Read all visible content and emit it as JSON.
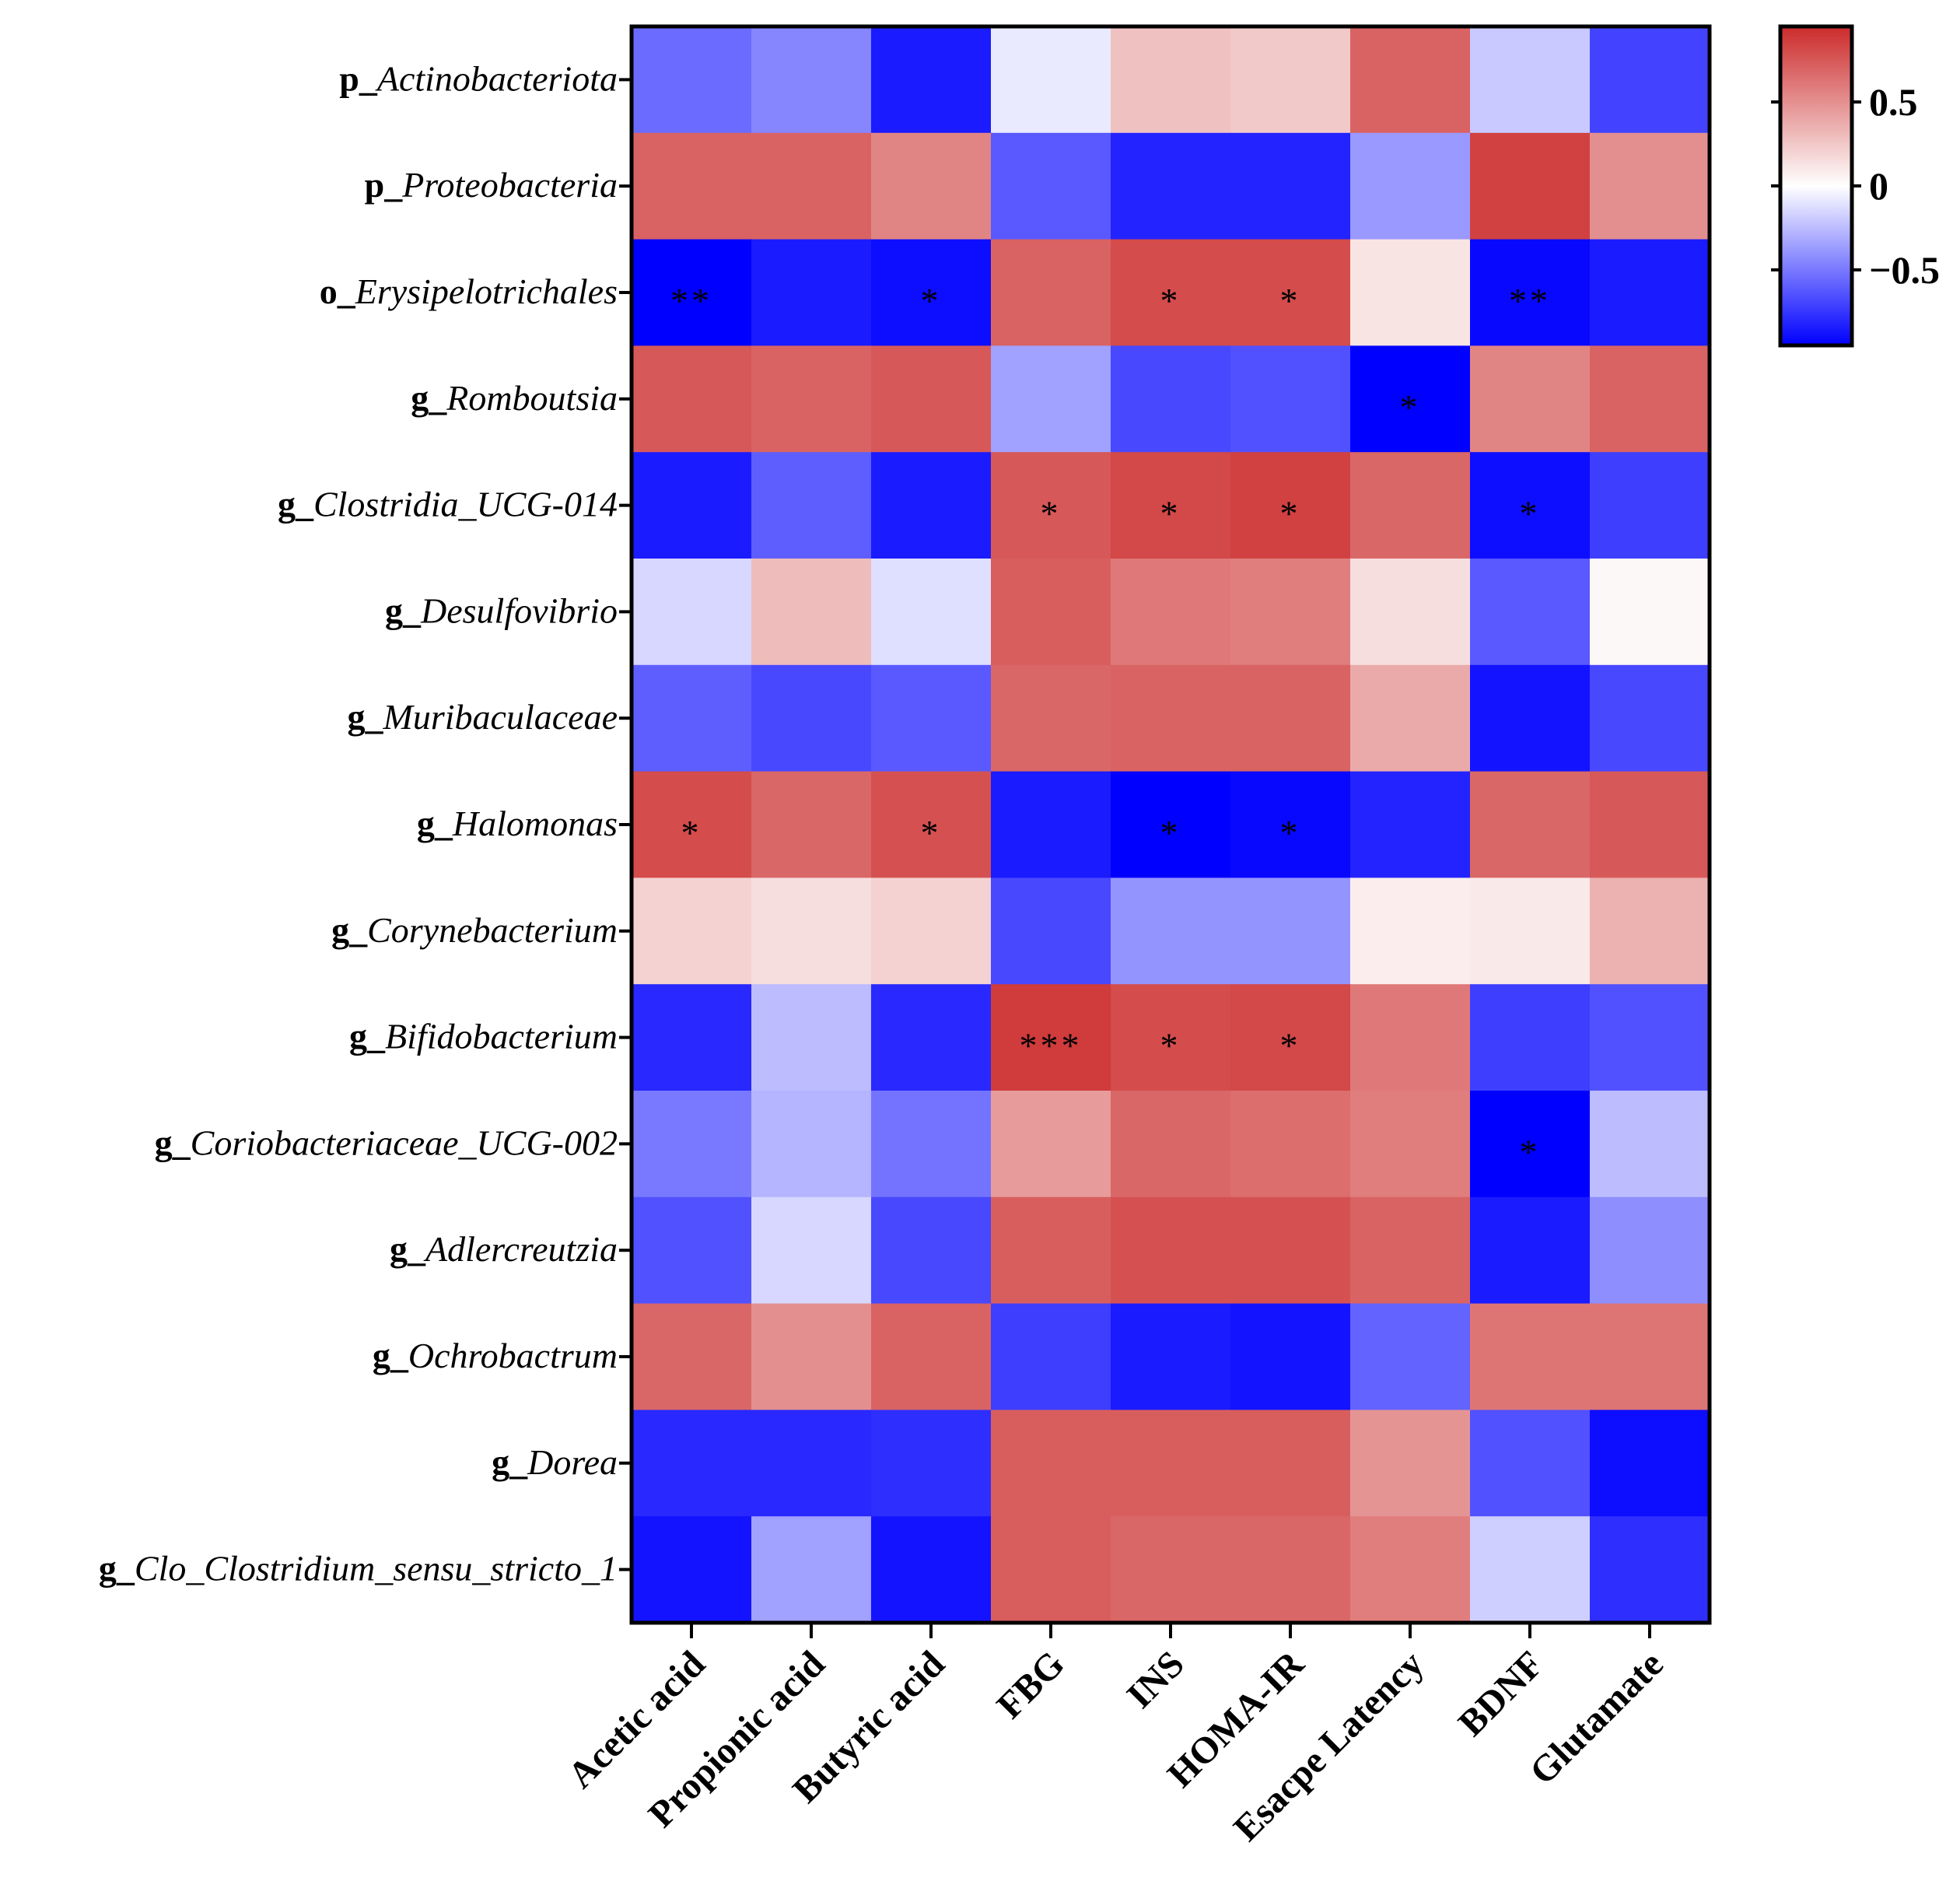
{
  "chart_data": {
    "type": "heatmap",
    "title": "",
    "xlabel": "",
    "ylabel": "",
    "columns": [
      "Acetic acid",
      "Propionic acid",
      "Butyric acid",
      "FBG",
      "INS",
      "HOMA-IR",
      "Esacpe Latency",
      "BDNF",
      "Glutamate"
    ],
    "rows": [
      {
        "prefix": "p_",
        "taxon": "Actinobacteriota"
      },
      {
        "prefix": "p_",
        "taxon": "Proteobacteria"
      },
      {
        "prefix": "o_",
        "taxon": "Erysipelotrichales"
      },
      {
        "prefix": "g_",
        "taxon": "Romboutsia"
      },
      {
        "prefix": "g_",
        "taxon": "Clostridia_UCG-014"
      },
      {
        "prefix": "g_",
        "taxon": "Desulfovibrio"
      },
      {
        "prefix": "g_",
        "taxon": "Muribaculaceae"
      },
      {
        "prefix": "g_",
        "taxon": "Halomonas"
      },
      {
        "prefix": "g_",
        "taxon": "Corynebacterium"
      },
      {
        "prefix": "g_",
        "taxon": "Bifidobacterium"
      },
      {
        "prefix": "g_",
        "taxon": "Coriobacteriaceae_UCG-002"
      },
      {
        "prefix": "g_",
        "taxon": "Adlercreutzia"
      },
      {
        "prefix": "g_",
        "taxon": "Ochrobactrum"
      },
      {
        "prefix": "g_",
        "taxon": "Dorea"
      },
      {
        "prefix": "g_",
        "taxon": "Clo_Clostridium_sensu_stricto_1"
      }
    ],
    "values": [
      [
        -0.55,
        -0.45,
        -0.85,
        -0.08,
        0.28,
        0.24,
        0.7,
        -0.2,
        -0.7
      ],
      [
        0.7,
        0.7,
        0.55,
        -0.62,
        -0.82,
        -0.82,
        -0.38,
        0.85,
        0.5
      ],
      [
        -0.95,
        -0.85,
        -0.9,
        0.7,
        0.8,
        0.8,
        0.12,
        -0.92,
        -0.85
      ],
      [
        0.75,
        0.7,
        0.75,
        -0.35,
        -0.68,
        -0.65,
        -0.97,
        0.55,
        0.7
      ],
      [
        -0.85,
        -0.6,
        -0.85,
        0.75,
        0.82,
        0.85,
        0.68,
        -0.9,
        -0.72
      ],
      [
        -0.15,
        0.3,
        -0.12,
        0.72,
        0.6,
        0.58,
        0.15,
        -0.62,
        0.03
      ],
      [
        -0.6,
        -0.68,
        -0.62,
        0.68,
        0.7,
        0.7,
        0.38,
        -0.88,
        -0.68
      ],
      [
        0.8,
        0.68,
        0.78,
        -0.85,
        -0.95,
        -0.92,
        -0.82,
        0.68,
        0.75
      ],
      [
        0.2,
        0.15,
        0.2,
        -0.68,
        -0.4,
        -0.4,
        0.08,
        0.1,
        0.35
      ],
      [
        -0.8,
        -0.25,
        -0.8,
        0.88,
        0.8,
        0.82,
        0.6,
        -0.72,
        -0.65
      ],
      [
        -0.5,
        -0.28,
        -0.52,
        0.45,
        0.68,
        0.65,
        0.58,
        -0.95,
        -0.25
      ],
      [
        -0.65,
        -0.15,
        -0.68,
        0.72,
        0.78,
        0.78,
        0.7,
        -0.85,
        -0.42
      ],
      [
        0.68,
        0.5,
        0.7,
        -0.72,
        -0.85,
        -0.88,
        -0.58,
        0.62,
        0.62
      ],
      [
        -0.8,
        -0.8,
        -0.78,
        0.72,
        0.72,
        0.72,
        0.48,
        -0.65,
        -0.9
      ],
      [
        -0.88,
        -0.35,
        -0.88,
        0.72,
        0.68,
        0.68,
        0.58,
        -0.18,
        -0.78
      ]
    ],
    "significance": [
      [
        "",
        "",
        "",
        "",
        "",
        "",
        "",
        "",
        ""
      ],
      [
        "",
        "",
        "",
        "",
        "",
        "",
        "",
        "",
        ""
      ],
      [
        "**",
        "",
        "*",
        "",
        "*",
        "*",
        "",
        "**",
        ""
      ],
      [
        "",
        "",
        "",
        "",
        "",
        "",
        "*",
        "",
        ""
      ],
      [
        "",
        "",
        "",
        "*",
        "*",
        "*",
        "",
        "*",
        ""
      ],
      [
        "",
        "",
        "",
        "",
        "",
        "",
        "",
        "",
        ""
      ],
      [
        "",
        "",
        "",
        "",
        "",
        "",
        "",
        "",
        ""
      ],
      [
        "*",
        "",
        "*",
        "",
        "*",
        "*",
        "",
        "",
        ""
      ],
      [
        "",
        "",
        "",
        "",
        "",
        "",
        "",
        "",
        ""
      ],
      [
        "",
        "",
        "",
        "***",
        "*",
        "*",
        "",
        "",
        ""
      ],
      [
        "",
        "",
        "",
        "",
        "",
        "",
        "",
        "*",
        ""
      ],
      [
        "",
        "",
        "",
        "",
        "",
        "",
        "",
        "",
        ""
      ],
      [
        "",
        "",
        "",
        "",
        "",
        "",
        "",
        "",
        ""
      ],
      [
        "",
        "",
        "",
        "",
        "",
        "",
        "",
        "",
        ""
      ],
      [
        "",
        "",
        "",
        "",
        "",
        "",
        "",
        "",
        ""
      ]
    ],
    "colorbar": {
      "min": -0.95,
      "max": 0.95,
      "ticks": [
        0.5,
        0,
        -0.5
      ],
      "tick_labels": [
        "0.5",
        "0",
        "−0.5"
      ],
      "colors": {
        "low": "#0000ff",
        "mid": "#ffffff",
        "high": "#cc2b2b"
      }
    }
  }
}
